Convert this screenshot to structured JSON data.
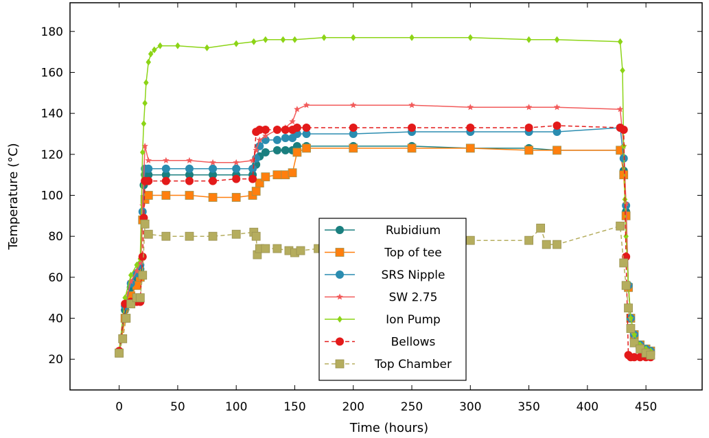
{
  "chart_data": {
    "type": "line",
    "xlabel": "Time (hours)",
    "ylabel": "Temperature (°C)",
    "xlim": [
      -42,
      498
    ],
    "ylim": [
      5,
      194
    ],
    "xticks": [
      0,
      50,
      100,
      150,
      200,
      250,
      300,
      350,
      400,
      450
    ],
    "yticks": [
      20,
      40,
      60,
      80,
      100,
      120,
      140,
      160,
      180
    ],
    "legend_position": "center",
    "grid": false,
    "series": [
      {
        "name": "Rubidium",
        "color": "#1a7f7f",
        "marker": "circle",
        "dash": "solid",
        "x": [
          0,
          5,
          10,
          15,
          18,
          20,
          21,
          22,
          25,
          40,
          60,
          80,
          100,
          114,
          117,
          120,
          125,
          135,
          142,
          148,
          152,
          160,
          200,
          250,
          300,
          350,
          374,
          428,
          431,
          433,
          435,
          437,
          440,
          445,
          450,
          454
        ],
        "y": [
          23,
          44,
          55,
          60,
          64,
          88,
          105,
          110,
          110,
          110,
          110,
          110,
          110,
          110,
          115,
          119,
          121,
          122,
          122,
          122,
          124,
          124,
          124,
          124,
          123,
          123,
          122,
          122,
          112,
          92,
          55,
          40,
          32,
          27,
          25,
          24
        ]
      },
      {
        "name": "Top of tee",
        "color": "#ff7f0e",
        "marker": "square",
        "dash": "solid",
        "x": [
          0,
          5,
          10,
          15,
          18,
          20,
          22,
          25,
          40,
          60,
          80,
          100,
          114,
          117,
          120,
          125,
          135,
          142,
          148,
          152,
          160,
          200,
          250,
          300,
          350,
          374,
          428,
          431,
          433,
          435,
          437,
          440,
          445,
          450,
          454
        ],
        "y": [
          23,
          40,
          51,
          56,
          60,
          88,
          98,
          100,
          100,
          100,
          99,
          99,
          100,
          102,
          106,
          109,
          110,
          110,
          111,
          121,
          123,
          123,
          123,
          123,
          122,
          122,
          122,
          110,
          90,
          55,
          40,
          32,
          27,
          25,
          24
        ]
      },
      {
        "name": "SRS Nipple",
        "color": "#2a8cb0",
        "marker": "circle",
        "dash": "solid",
        "x": [
          0,
          5,
          10,
          15,
          18,
          20,
          22,
          25,
          40,
          60,
          80,
          100,
          114,
          117,
          120,
          125,
          135,
          142,
          148,
          152,
          160,
          200,
          250,
          300,
          350,
          374,
          428,
          431,
          433,
          435,
          437,
          440,
          445,
          450,
          454
        ],
        "y": [
          23,
          46,
          57,
          62,
          66,
          92,
          113,
          113,
          113,
          113,
          113,
          113,
          113,
          118,
          124,
          127,
          127,
          128,
          128,
          130,
          130,
          130,
          131,
          131,
          131,
          131,
          133,
          118,
          95,
          56,
          40,
          32,
          27,
          25,
          24
        ]
      },
      {
        "name": "SW 2.75",
        "color": "#f25a5a",
        "marker": "star",
        "dash": "solid",
        "x": [
          0,
          5,
          10,
          15,
          18,
          20,
          22,
          25,
          40,
          60,
          80,
          100,
          114,
          117,
          120,
          125,
          135,
          142,
          148,
          152,
          160,
          200,
          250,
          300,
          350,
          374,
          428,
          431,
          433,
          435,
          437,
          440,
          445,
          450,
          454
        ],
        "y": [
          24,
          47,
          58,
          63,
          67,
          95,
          124,
          117,
          117,
          117,
          116,
          116,
          117,
          122,
          127,
          129,
          132,
          133,
          136,
          142,
          144,
          144,
          144,
          143,
          143,
          143,
          142,
          124,
          96,
          56,
          40,
          32,
          27,
          25,
          24
        ]
      },
      {
        "name": "Ion Pump",
        "color": "#8cd416",
        "marker": "diamond",
        "dash": "solid",
        "x": [
          0,
          5,
          10,
          15,
          18,
          20,
          21,
          22,
          23,
          25,
          27,
          30,
          35,
          50,
          75,
          100,
          115,
          125,
          140,
          150,
          175,
          200,
          250,
          300,
          350,
          374,
          428,
          430,
          431,
          432,
          433,
          435,
          437,
          440,
          445,
          450,
          454
        ],
        "y": [
          24,
          50,
          61,
          66,
          69,
          121,
          135,
          145,
          155,
          165,
          169,
          171,
          173,
          173,
          172,
          174,
          175,
          176,
          176,
          176,
          177,
          177,
          177,
          177,
          176,
          176,
          175,
          161,
          124,
          98,
          80,
          57,
          40,
          32,
          27,
          25,
          24
        ]
      },
      {
        "name": "Bellows",
        "color": "#e31a1a",
        "marker": "circle",
        "dash": "dashed",
        "x": [
          0,
          5,
          10,
          15,
          18,
          20,
          21,
          22,
          25,
          40,
          60,
          80,
          100,
          114,
          117,
          120,
          125,
          135,
          142,
          148,
          152,
          160,
          200,
          250,
          300,
          350,
          374,
          428,
          431,
          433,
          435,
          437,
          440,
          445,
          450,
          454
        ],
        "y": [
          24,
          47,
          48,
          48,
          48,
          70,
          89,
          107,
          107,
          107,
          107,
          107,
          108,
          108,
          131,
          132,
          132,
          132,
          132,
          132,
          133,
          133,
          133,
          133,
          133,
          133,
          134,
          133,
          132,
          70,
          22,
          21,
          21,
          21,
          21,
          21
        ]
      },
      {
        "name": "Top Chamber",
        "color": "#b5ad5e",
        "marker": "square",
        "dash": "dashed",
        "x": [
          0,
          3,
          6,
          10,
          15,
          18,
          20,
          22,
          25,
          40,
          60,
          80,
          100,
          115,
          117,
          118,
          120,
          125,
          135,
          145,
          150,
          155,
          170,
          200,
          250,
          300,
          350,
          360,
          365,
          374,
          428,
          431,
          433,
          435,
          437,
          440,
          445,
          450,
          454
        ],
        "y": [
          23,
          30,
          40,
          47,
          50,
          50,
          61,
          86,
          81,
          80,
          80,
          80,
          81,
          82,
          80,
          71,
          74,
          74,
          74,
          73,
          72,
          73,
          74,
          75,
          77,
          78,
          78,
          84,
          76,
          76,
          85,
          67,
          56,
          45,
          35,
          28,
          25,
          23,
          22
        ]
      }
    ]
  }
}
